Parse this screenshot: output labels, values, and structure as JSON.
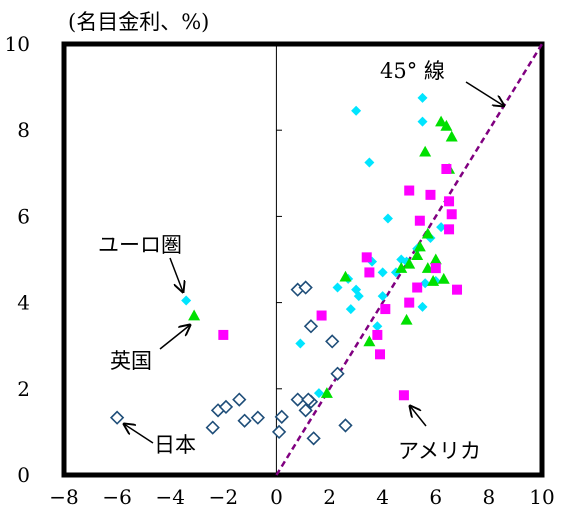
{
  "chart_data": {
    "type": "scatter",
    "title": "",
    "ylabel": "(名目金利、%)",
    "xlabel": "",
    "xlim": [
      -8,
      10
    ],
    "ylim": [
      0,
      10
    ],
    "x_ticks": [
      "−8",
      "−6",
      "−4",
      "−2",
      "0",
      "2",
      "4",
      "6",
      "8",
      "10"
    ],
    "y_ticks": [
      "0",
      "2",
      "4",
      "6",
      "8",
      "10"
    ],
    "grid": false,
    "reference_line": {
      "label": "45° 線",
      "from": [
        0,
        0
      ],
      "to": [
        10,
        10
      ],
      "color": "#800080"
    },
    "series": [
      {
        "key": "japan",
        "marker": "diamond-open",
        "color": "#1f4e79",
        "points": [
          [
            -6,
            1.33
          ],
          [
            -2.4,
            1.1
          ],
          [
            -2.2,
            1.5
          ],
          [
            -1.9,
            1.58
          ],
          [
            -1.4,
            1.75
          ],
          [
            -1.2,
            1.26
          ],
          [
            -0.7,
            1.33
          ],
          [
            0.1,
            1.0
          ],
          [
            0.2,
            1.35
          ],
          [
            0.8,
            1.75
          ],
          [
            0.8,
            4.3
          ],
          [
            1.1,
            4.35
          ],
          [
            1.1,
            1.5
          ],
          [
            1.3,
            1.7
          ],
          [
            1.2,
            1.75
          ],
          [
            1.3,
            3.45
          ],
          [
            1.4,
            0.85
          ],
          [
            2.1,
            3.1
          ],
          [
            2.3,
            2.35
          ],
          [
            2.6,
            1.15
          ]
        ]
      },
      {
        "key": "euro",
        "marker": "diamond",
        "color": "#00e5ff",
        "points": [
          [
            -3.4,
            4.05
          ],
          [
            0.9,
            3.05
          ],
          [
            1.6,
            1.9
          ],
          [
            2.3,
            4.35
          ],
          [
            2.7,
            4.55
          ],
          [
            2.8,
            3.85
          ],
          [
            3.0,
            8.45
          ],
          [
            3.0,
            4.3
          ],
          [
            3.1,
            4.15
          ],
          [
            3.5,
            7.25
          ],
          [
            3.6,
            4.95
          ],
          [
            3.8,
            3.45
          ],
          [
            4.0,
            4.7
          ],
          [
            4.0,
            4.15
          ],
          [
            4.2,
            5.95
          ],
          [
            4.5,
            4.7
          ],
          [
            4.7,
            5.0
          ],
          [
            4.9,
            4.95
          ],
          [
            5.3,
            5.25
          ],
          [
            5.5,
            8.75
          ],
          [
            5.5,
            8.2
          ],
          [
            5.5,
            3.9
          ],
          [
            5.6,
            4.45
          ],
          [
            5.8,
            5.5
          ],
          [
            6.0,
            4.5
          ],
          [
            6.2,
            5.75
          ]
        ]
      },
      {
        "key": "uk",
        "marker": "triangle",
        "color": "#00e000",
        "points": [
          [
            -3.1,
            3.7
          ],
          [
            1.9,
            1.9
          ],
          [
            2.6,
            4.6
          ],
          [
            3.5,
            3.1
          ],
          [
            4.7,
            4.8
          ],
          [
            4.9,
            3.6
          ],
          [
            5.0,
            4.9
          ],
          [
            5.3,
            5.1
          ],
          [
            5.4,
            5.3
          ],
          [
            5.6,
            7.5
          ],
          [
            5.7,
            5.6
          ],
          [
            5.7,
            4.8
          ],
          [
            5.9,
            4.5
          ],
          [
            6.0,
            5.0
          ],
          [
            6.2,
            8.2
          ],
          [
            6.3,
            4.55
          ],
          [
            6.4,
            8.1
          ],
          [
            6.5,
            7.1
          ],
          [
            6.6,
            7.85
          ]
        ]
      },
      {
        "key": "us",
        "marker": "square",
        "color": "#ff00ff",
        "points": [
          [
            -2.0,
            3.25
          ],
          [
            1.7,
            3.7
          ],
          [
            3.4,
            5.05
          ],
          [
            3.5,
            4.7
          ],
          [
            3.8,
            3.25
          ],
          [
            3.9,
            2.8
          ],
          [
            4.1,
            3.85
          ],
          [
            4.8,
            1.85
          ],
          [
            5.0,
            4.0
          ],
          [
            5.0,
            6.6
          ],
          [
            5.3,
            4.35
          ],
          [
            5.4,
            5.9
          ],
          [
            5.8,
            6.5
          ],
          [
            6.0,
            4.8
          ],
          [
            6.4,
            7.1
          ],
          [
            6.5,
            6.35
          ],
          [
            6.5,
            5.7
          ],
          [
            6.6,
            6.05
          ],
          [
            6.8,
            4.3
          ]
        ]
      }
    ],
    "annotations": [
      {
        "key": "euro",
        "text": "ユーロ圏"
      },
      {
        "key": "uk",
        "text": "英国"
      },
      {
        "key": "japan",
        "text": "日本"
      },
      {
        "key": "us",
        "text": "アメリカ"
      }
    ]
  }
}
